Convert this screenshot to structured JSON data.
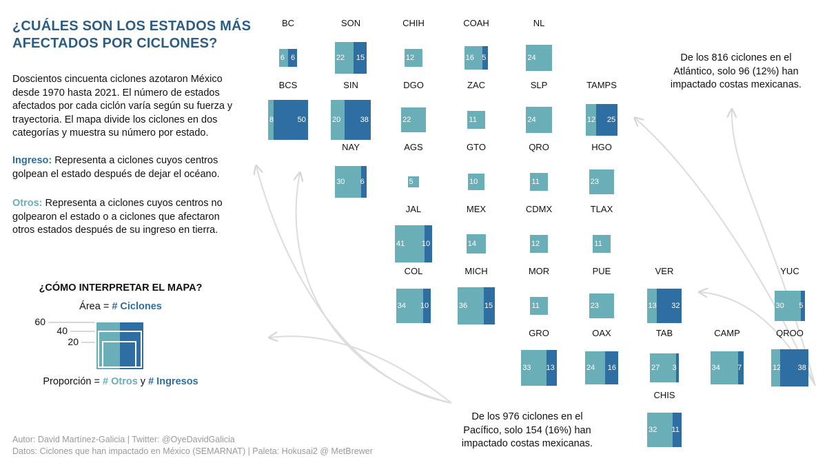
{
  "title": "¿CUÁLES SON LOS ESTADOS MÁS AFECTADOS POR CICLONES?",
  "intro": "Doscientos cincuenta ciclones azotaron México desde 1970 hasta 2021. El número de estados afectados por cada ciclón varía según su fuerza y trayectoria. El mapa divide los ciclones en dos categorías y muestra su número por estado.",
  "ingreso": {
    "label": "Ingreso:",
    "text": " Representa a ciclones cuyos centros golpean el estado después de dejar el océano."
  },
  "otros": {
    "label": "Otros:",
    "text": " Representa a ciclones cuyos centros no golpearon el estado o a ciclones que afectaron otros estados después de su ingreso en tierra."
  },
  "legend": {
    "title": "¿CÓMO INTERPRETAR EL MAPA?",
    "area_prefix": "Área = ",
    "area_kw": "# Ciclones",
    "prop_prefix": "Proporción = ",
    "prop_otros": "# Otros",
    "prop_y": " y ",
    "prop_ingresos": "# Ingresos",
    "ticks": [
      "60",
      "40",
      "20"
    ]
  },
  "credits": {
    "author": "Autor: David Martínez-Galicia | Twitter: @OyeDavidGalicia",
    "data": "Datos: Ciclones que han impactado en México (SEMARNAT) | Paleta: Hokusai2 @ MetBrewer"
  },
  "annotations": {
    "atlantic": "De los 816 ciclones en el Atlántico, solo 96 (12%) han impactado costas mexicanas.",
    "pacific": "De los 976 ciclones en el Pacífico, solo 154 (16%) han impactado costas mexicanas."
  },
  "colors": {
    "otros": "#6aaeb8",
    "ingreso": "#2e6ea3",
    "title": "#2b5d86"
  },
  "states": [
    {
      "name": "BC",
      "otros": 6,
      "ingreso": 6
    },
    {
      "name": "SON",
      "otros": 22,
      "ingreso": 15
    },
    {
      "name": "CHIH",
      "otros": 12,
      "ingreso": 0
    },
    {
      "name": "COAH",
      "otros": 16,
      "ingreso": 5
    },
    {
      "name": "NL",
      "otros": 24,
      "ingreso": 0
    },
    {
      "name": "BCS",
      "otros": 8,
      "ingreso": 50
    },
    {
      "name": "SIN",
      "otros": 20,
      "ingreso": 38
    },
    {
      "name": "DGO",
      "otros": 22,
      "ingreso": 0
    },
    {
      "name": "ZAC",
      "otros": 11,
      "ingreso": 0
    },
    {
      "name": "SLP",
      "otros": 24,
      "ingreso": 0
    },
    {
      "name": "TAMPS",
      "otros": 12,
      "ingreso": 25
    },
    {
      "name": "NAY",
      "otros": 30,
      "ingreso": 6
    },
    {
      "name": "AGS",
      "otros": 5,
      "ingreso": 0
    },
    {
      "name": "GTO",
      "otros": 10,
      "ingreso": 0
    },
    {
      "name": "QRO",
      "otros": 11,
      "ingreso": 0
    },
    {
      "name": "HGO",
      "otros": 23,
      "ingreso": 0
    },
    {
      "name": "JAL",
      "otros": 41,
      "ingreso": 10
    },
    {
      "name": "MEX",
      "otros": 14,
      "ingreso": 0
    },
    {
      "name": "CDMX",
      "otros": 12,
      "ingreso": 0
    },
    {
      "name": "TLAX",
      "otros": 11,
      "ingreso": 0
    },
    {
      "name": "COL",
      "otros": 34,
      "ingreso": 10
    },
    {
      "name": "MICH",
      "otros": 36,
      "ingreso": 15
    },
    {
      "name": "MOR",
      "otros": 11,
      "ingreso": 0
    },
    {
      "name": "PUE",
      "otros": 23,
      "ingreso": 0
    },
    {
      "name": "VER",
      "otros": 13,
      "ingreso": 32
    },
    {
      "name": "YUC",
      "otros": 30,
      "ingreso": 5
    },
    {
      "name": "GRO",
      "otros": 33,
      "ingreso": 13
    },
    {
      "name": "OAX",
      "otros": 24,
      "ingreso": 16
    },
    {
      "name": "TAB",
      "otros": 27,
      "ingreso": 3
    },
    {
      "name": "CAMP",
      "otros": 34,
      "ingreso": 7
    },
    {
      "name": "QROO",
      "otros": 12,
      "ingreso": 38
    },
    {
      "name": "CHIS",
      "otros": 32,
      "ingreso": 11
    }
  ]
}
